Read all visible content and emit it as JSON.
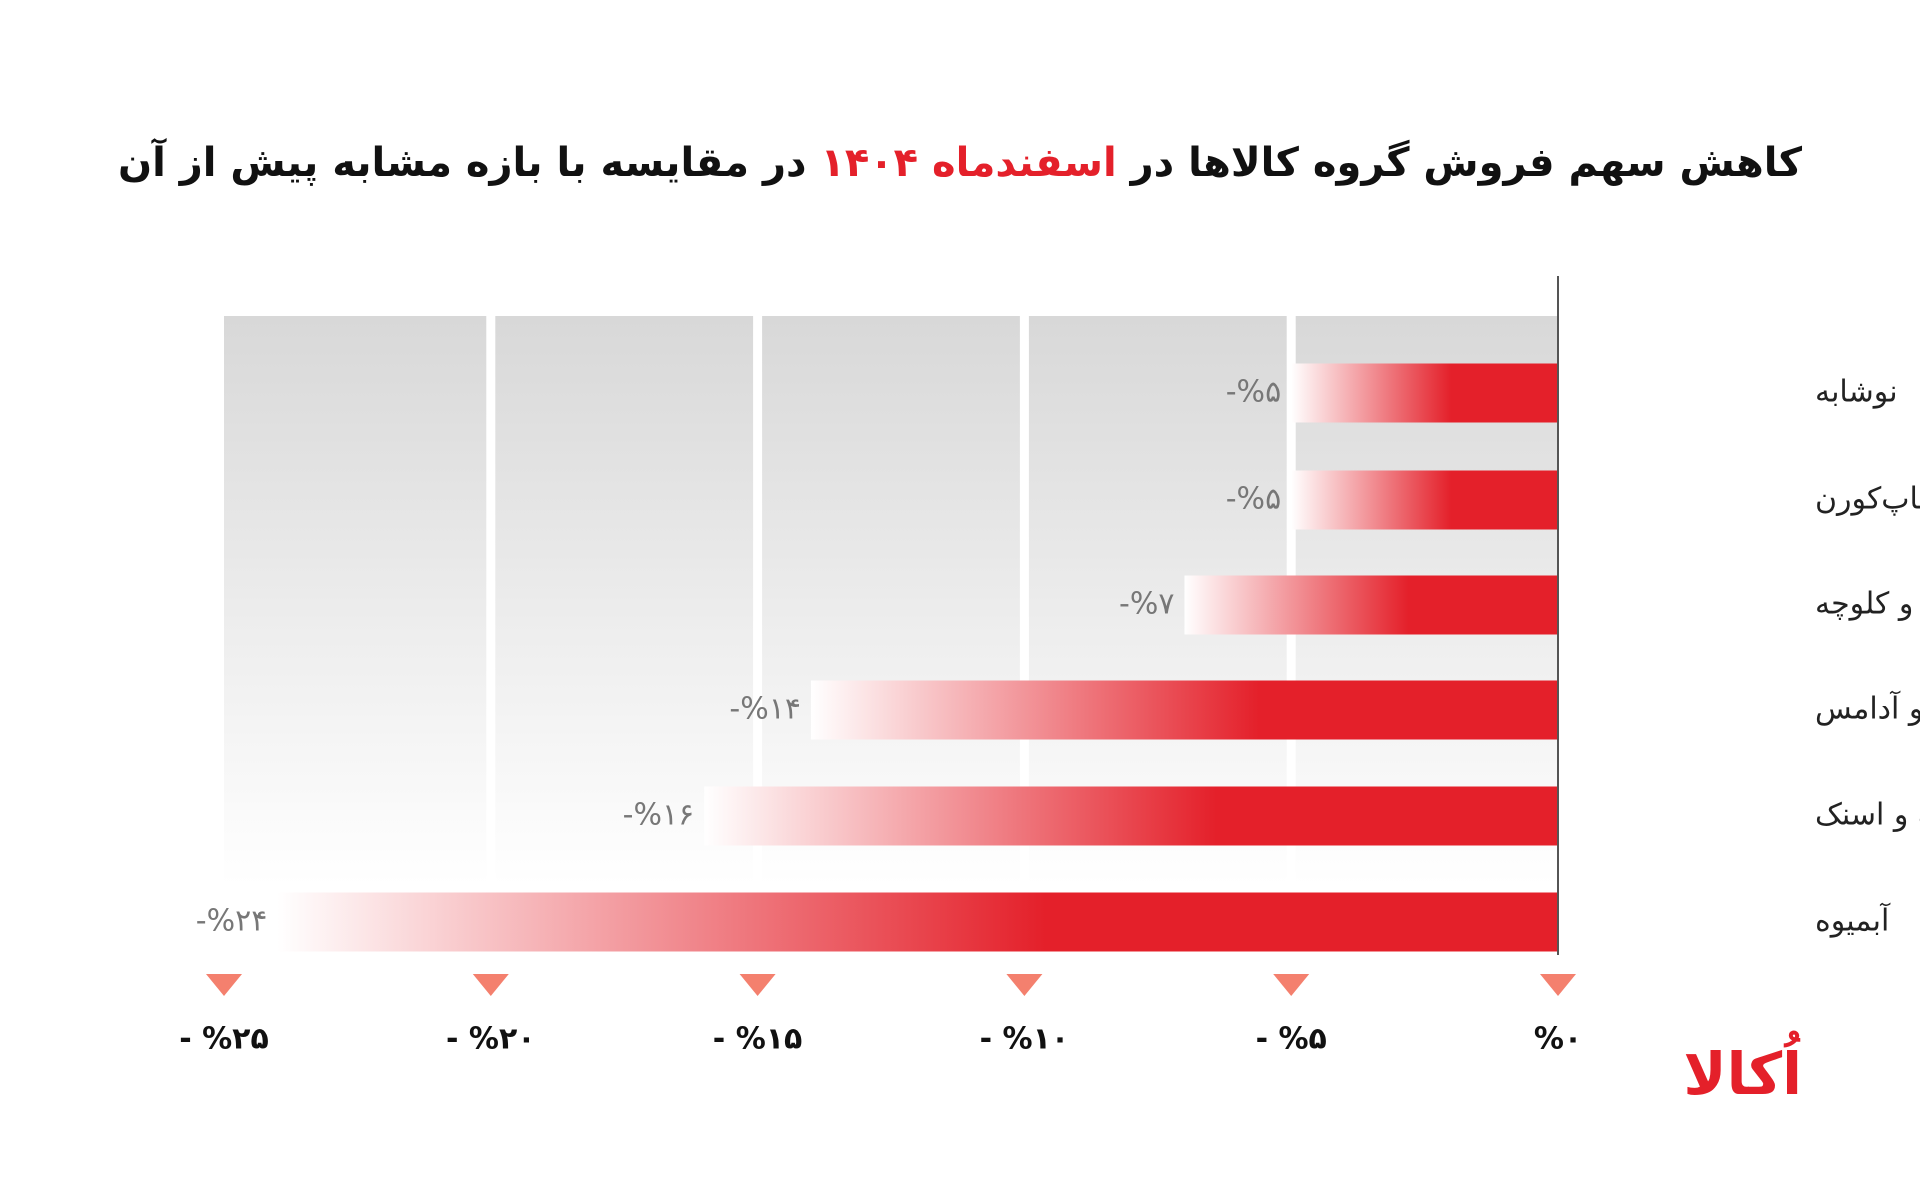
{
  "chart_data": {
    "type": "bar",
    "orientation": "horizontal",
    "title": {
      "before": "کاهش سهم فروش گروه کالاها در",
      "highlight": "اسفندماه ۱۴۰۴",
      "after": "در مقایسه با بازه مشابه پیش از آن"
    },
    "categories": [
      "نوشابه",
      "چیپس و پاپ‌کورن",
      "کیک و کلوچه",
      "پاستیل و آدامس",
      "پفک و اسنک",
      "آبمیوه"
    ],
    "values": [
      -5,
      -5,
      -7,
      -14,
      -16,
      -24
    ],
    "value_labels": [
      "-%۵",
      "-%۵",
      "-%۷",
      "-%۱۴",
      "-%۱۶",
      "-%۲۴"
    ],
    "color": "#e4202a",
    "xlim": [
      -25,
      0
    ],
    "xticks": [
      {
        "value": -25,
        "label": "- %۲۵"
      },
      {
        "value": -20,
        "label": "- %۲۰"
      },
      {
        "value": -15,
        "label": "- %۱۵"
      },
      {
        "value": -10,
        "label": "- %۱۰"
      },
      {
        "value": -5,
        "label": "- %۵"
      },
      {
        "value": 0,
        "label": "%۰"
      }
    ],
    "grid": true,
    "brand": "اُکالا"
  }
}
